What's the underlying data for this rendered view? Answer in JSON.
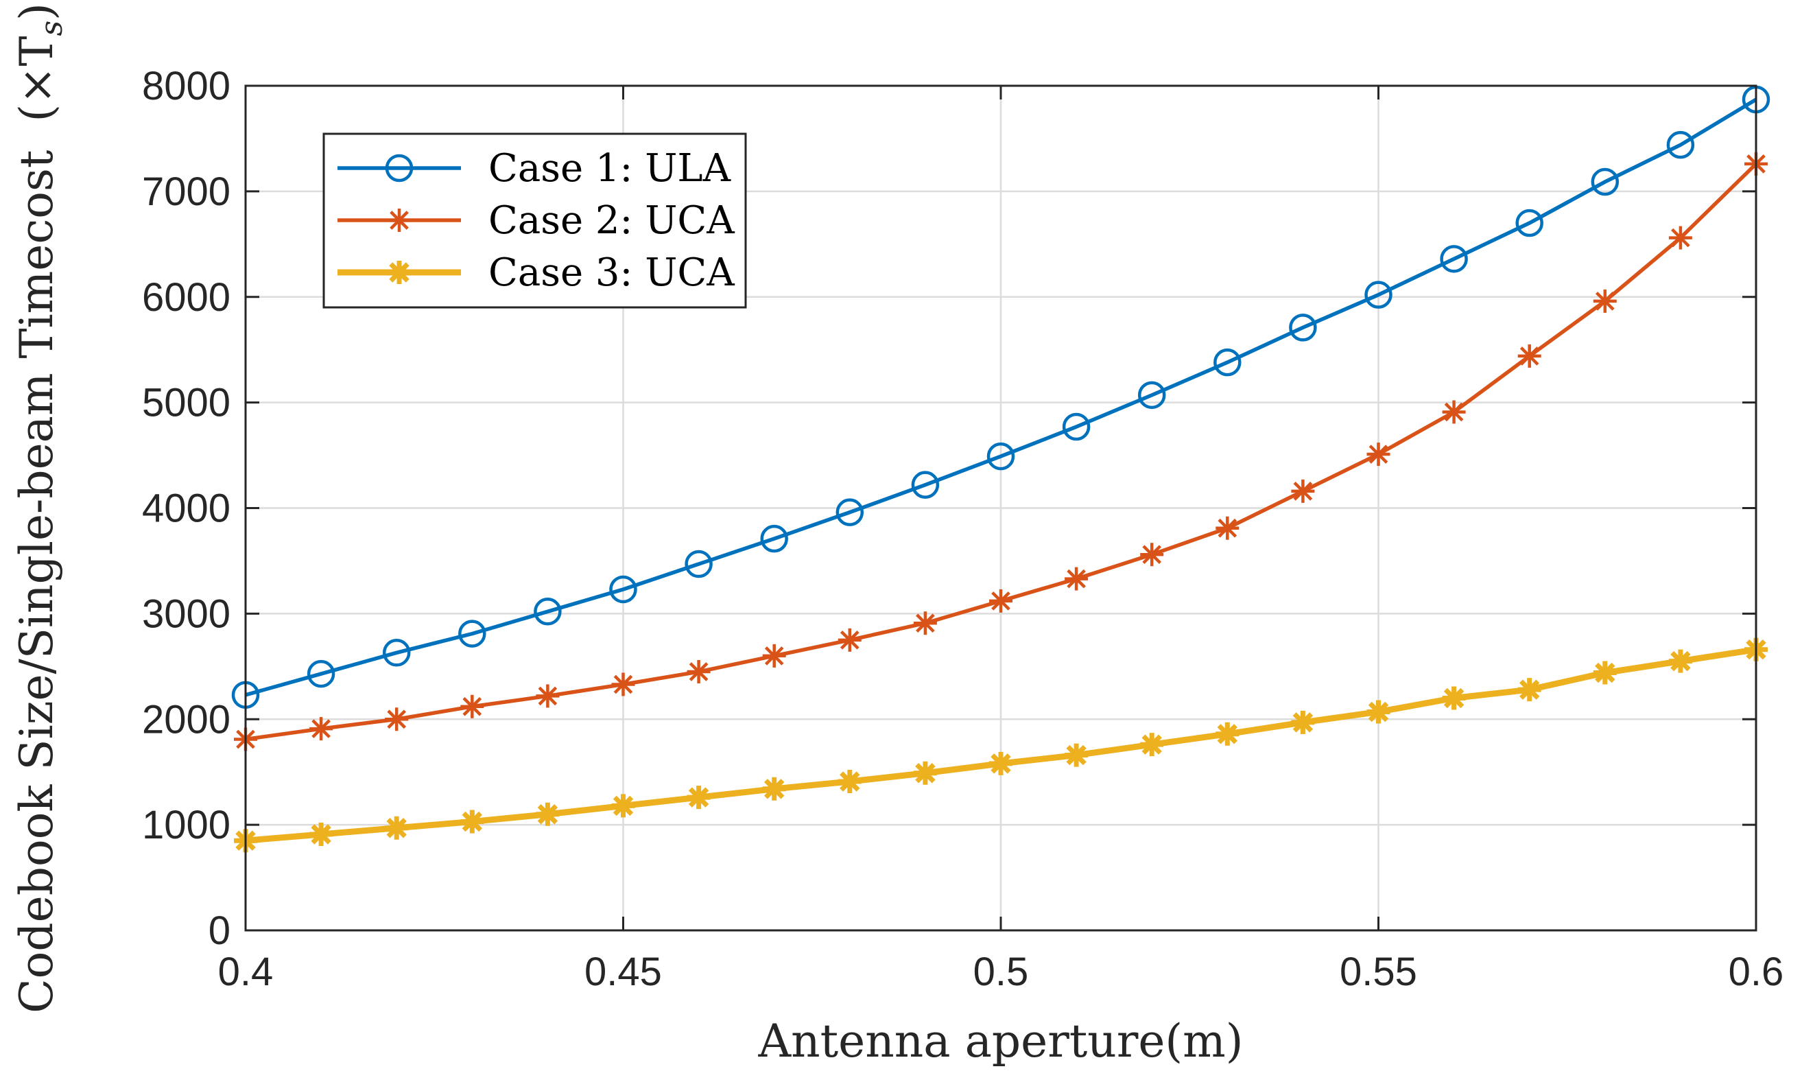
{
  "chart_data": {
    "type": "line",
    "title": "",
    "xlabel": "Antenna aperture(m)",
    "ylabel": "Codebook Size/Single-beam Timecost",
    "ylabel_unit": "(×T",
    "ylabel_unit_sub": "s",
    "ylabel_unit_close": ")",
    "xlim": [
      0.4,
      0.6
    ],
    "ylim": [
      0,
      8000
    ],
    "x_ticks": [
      0.4,
      0.45,
      0.5,
      0.55,
      0.6
    ],
    "x_tick_labels": [
      "0.4",
      "0.45",
      "0.5",
      "0.55",
      "0.6"
    ],
    "y_ticks": [
      0,
      1000,
      2000,
      3000,
      4000,
      5000,
      6000,
      7000,
      8000
    ],
    "y_tick_labels": [
      "0",
      "1000",
      "2000",
      "3000",
      "4000",
      "5000",
      "6000",
      "7000",
      "8000"
    ],
    "grid": true,
    "legend_position": "top-left",
    "x": [
      0.4,
      0.41,
      0.42,
      0.43,
      0.44,
      0.45,
      0.46,
      0.47,
      0.48,
      0.49,
      0.5,
      0.51,
      0.52,
      0.53,
      0.54,
      0.55,
      0.56,
      0.57,
      0.58,
      0.59,
      0.6
    ],
    "series": [
      {
        "name": "Case 1: ULA",
        "color": "#0072BD",
        "marker": "circle",
        "values": [
          2230,
          2430,
          2630,
          2810,
          3020,
          3230,
          3470,
          3710,
          3960,
          4220,
          4490,
          4770,
          5070,
          5380,
          5710,
          6020,
          6360,
          6700,
          7090,
          7440,
          7870
        ]
      },
      {
        "name": "Case 2: UCA",
        "color": "#D95319",
        "marker": "asterisk",
        "values": [
          1810,
          1910,
          2000,
          2120,
          2220,
          2330,
          2450,
          2600,
          2750,
          2910,
          3120,
          3330,
          3560,
          3810,
          4160,
          4510,
          4910,
          5440,
          5960,
          6560,
          7260
        ]
      },
      {
        "name": "Case 3: UCA",
        "color": "#EDB120",
        "marker": "asterisk",
        "values": [
          850,
          910,
          970,
          1030,
          1100,
          1180,
          1260,
          1340,
          1410,
          1490,
          1580,
          1660,
          1760,
          1860,
          1970,
          2070,
          2200,
          2280,
          2440,
          2550,
          2660
        ]
      }
    ]
  }
}
